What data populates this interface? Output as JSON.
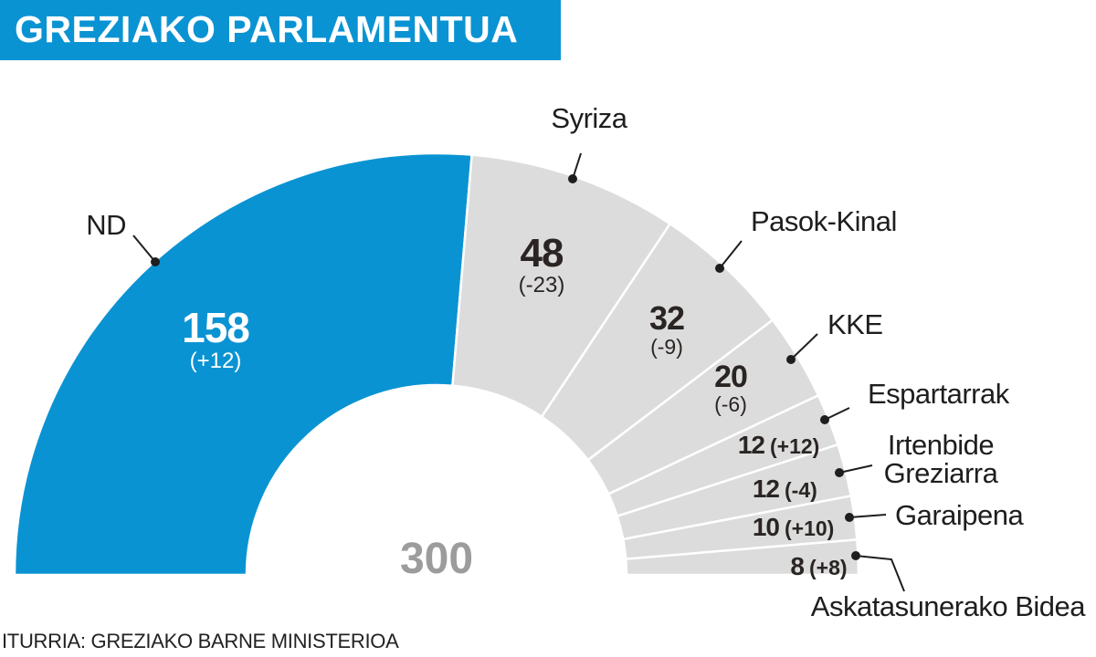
{
  "header": {
    "title": "GREZIAKO PARLAMENTUA"
  },
  "footer": {
    "source": "ITURRIA: GREZIAKO BARNE MINISTERIOA"
  },
  "chart_data": {
    "type": "pie",
    "subtype": "half-donut parliament",
    "total": 300,
    "total_label": "300",
    "series": [
      {
        "name": "ND",
        "seats": 158,
        "seats_label": "158",
        "change": "(+12)",
        "color": "#0a93d3"
      },
      {
        "name": "Syriza",
        "seats": 48,
        "seats_label": "48",
        "change": "(-23)",
        "color": "#dcdcdc"
      },
      {
        "name": "Pasok-Kinal",
        "seats": 32,
        "seats_label": "32",
        "change": "(-9)",
        "color": "#dcdcdc"
      },
      {
        "name": "KKE",
        "seats": 20,
        "seats_label": "20",
        "change": "(-6)",
        "color": "#dcdcdc"
      },
      {
        "name": "Espartarrak",
        "seats": 12,
        "seats_label": "12",
        "change": "(+12)",
        "color": "#dcdcdc"
      },
      {
        "name": "Irtenbide Greziarra",
        "name_lines": [
          "Irtenbide",
          "Greziarra"
        ],
        "seats": 12,
        "seats_label": "12",
        "change": "(-4)",
        "color": "#dcdcdc"
      },
      {
        "name": "Garaipena",
        "seats": 10,
        "seats_label": "10",
        "change": "(+10)",
        "color": "#dcdcdc"
      },
      {
        "name": "Askatasunerako Bidea",
        "seats": 8,
        "seats_label": "8",
        "change": "(+8)",
        "color": "#dcdcdc"
      }
    ]
  },
  "colors": {
    "title_bg": "#0a93d3",
    "label_text": "#2a2523",
    "total_text": "#9c9c9c",
    "divider": "#ffffff"
  }
}
